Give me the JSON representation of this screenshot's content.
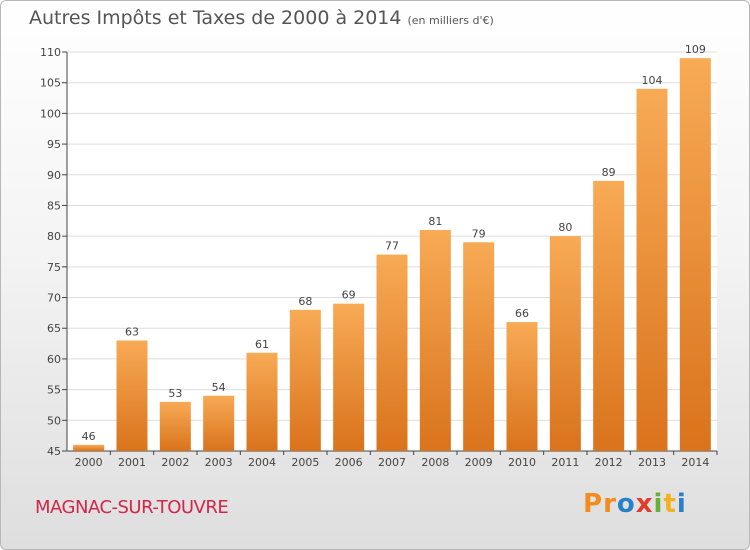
{
  "header": {
    "title": "Autres Impôts et Taxes de 2000 à 2014",
    "subtitle": "(en milliers d'€)"
  },
  "footer": {
    "commune": "MAGNAC-SUR-TOUVRE",
    "logo_letters": [
      "P",
      "r",
      "o",
      "x",
      "i",
      "t",
      "i"
    ],
    "logo_colors": [
      "#f28c1e",
      "#f28c1e",
      "#2a7fc9",
      "#e23a2b",
      "#6cae3c",
      "#f2b21e",
      "#2a7fc9"
    ]
  },
  "colors": {
    "bar_light": "#f8aa55",
    "bar_dark": "#d9731c",
    "grid": "#dddddd",
    "axis": "#444444"
  },
  "chart_data": {
    "type": "bar",
    "title": "Autres Impôts et Taxes de 2000 à 2014",
    "subtitle": "(en milliers d'€)",
    "categories": [
      "2000",
      "2001",
      "2002",
      "2003",
      "2004",
      "2005",
      "2006",
      "2007",
      "2008",
      "2009",
      "2010",
      "2011",
      "2012",
      "2013",
      "2014"
    ],
    "values": [
      46,
      63,
      53,
      54,
      61,
      68,
      69,
      77,
      81,
      79,
      66,
      80,
      89,
      104,
      109
    ],
    "ylim": [
      45,
      110
    ],
    "yticks": [
      45,
      50,
      55,
      60,
      65,
      70,
      75,
      80,
      85,
      90,
      95,
      100,
      105,
      110
    ],
    "grid": true,
    "xlabel": "",
    "ylabel": ""
  }
}
